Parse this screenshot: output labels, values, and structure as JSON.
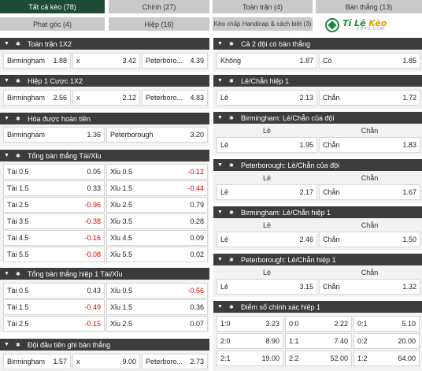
{
  "tabs": [
    {
      "label": "Tất cả kèo (78)",
      "active": true
    },
    {
      "label": "Chính (27)",
      "active": false
    },
    {
      "label": "Toàn trận (4)",
      "active": false
    },
    {
      "label": "Bàn thắng (13)",
      "active": false
    },
    {
      "label": "Phạt góc (4)",
      "active": false
    },
    {
      "label": "Hiệp (16)",
      "active": false
    },
    {
      "label": "Kèo chấp Handicap & cách biệt (3)",
      "active": false
    }
  ],
  "logo": {
    "main_a": "Tỉ Lệ ",
    "main_b": "Kèo",
    "sub": "EURO.COM"
  },
  "left": {
    "toan_tran_1x2": {
      "title": "Toàn trận 1X2",
      "home": "Birmingham",
      "home_odd": "1.88",
      "draw": "x",
      "draw_odd": "3.42",
      "away": "Peterboro...",
      "away_odd": "4.39"
    },
    "hiep1_1x2": {
      "title": "Hiệp 1 Cược 1X2",
      "home": "Birmingham",
      "home_odd": "2.56",
      "draw": "x",
      "draw_odd": "2.12",
      "away": "Peterboro...",
      "away_odd": "4.83"
    },
    "hoa_hoan_tien": {
      "title": "Hòa được hoàn tiền",
      "home": "Birmingham",
      "home_odd": "1.36",
      "away": "Peterborough",
      "away_odd": "3.20"
    },
    "tong_ban_thang": {
      "title": "Tổng bàn thắng Tài/Xỉu",
      "rows": [
        {
          "tai": "Tài 0.5",
          "tai_odd": "0.05",
          "xiu": "Xỉu 0.5",
          "xiu_odd": "-0.12"
        },
        {
          "tai": "Tài 1.5",
          "tai_odd": "0.33",
          "xiu": "Xỉu 1.5",
          "xiu_odd": "-0.44"
        },
        {
          "tai": "Tài 2.5",
          "tai_odd": "-0.96",
          "xiu": "Xỉu 2.5",
          "xiu_odd": "0.79"
        },
        {
          "tai": "Tài 3.5",
          "tai_odd": "-0.38",
          "xiu": "Xỉu 3.5",
          "xiu_odd": "0.28"
        },
        {
          "tai": "Tài 4.5",
          "tai_odd": "-0.16",
          "xiu": "Xỉu 4.5",
          "xiu_odd": "0.09"
        },
        {
          "tai": "Tài 5.5",
          "tai_odd": "-0.08",
          "xiu": "Xỉu 5.5",
          "xiu_odd": "0.02"
        }
      ]
    },
    "tong_ban_thang_h1": {
      "title": "Tổng bàn thắng hiệp 1 Tài/Xỉu",
      "rows": [
        {
          "tai": "Tài 0.5",
          "tai_odd": "0.43",
          "xiu": "Xỉu 0.5",
          "xiu_odd": "-0.56"
        },
        {
          "tai": "Tài 1.5",
          "tai_odd": "-0.49",
          "xiu": "Xỉu 1.5",
          "xiu_odd": "0.36"
        },
        {
          "tai": "Tài 2.5",
          "tai_odd": "-0.15",
          "xiu": "Xỉu 2.5",
          "xiu_odd": "0.07"
        }
      ]
    },
    "doi_dau_tien": {
      "title": "Đội đầu tiên ghi bàn thắng",
      "home": "Birmingham",
      "home_odd": "1.57",
      "draw": "x",
      "draw_odd": "9.00",
      "away": "Peterboro...",
      "away_odd": "2.73"
    }
  },
  "right": {
    "ca_hai_doi": {
      "title": "Cả 2 đội có bàn thắng",
      "no": "Không",
      "no_odd": "1.87",
      "yes": "Có",
      "yes_odd": "1.85"
    },
    "le_chan_h1": {
      "title": "Lẻ/Chẵn hiệp 1",
      "le": "Lẻ",
      "le_odd": "2.13",
      "chan": "Chẵn",
      "chan_odd": "1.72"
    },
    "birm_le_chan": {
      "title": "Birmingham: Lẻ/Chẵn của đội",
      "col_le": "Lẻ",
      "col_chan": "Chẵn",
      "le": "Lẻ",
      "le_odd": "1.95",
      "chan": "Chẵn",
      "chan_odd": "1.83"
    },
    "pet_le_chan": {
      "title": "Peterborough: Lẻ/Chẵn của đội",
      "col_le": "Lẻ",
      "col_chan": "Chẵn",
      "le": "Lẻ",
      "le_odd": "2.17",
      "chan": "Chẵn",
      "chan_odd": "1.67"
    },
    "birm_le_chan_h1": {
      "title": "Birmingham: Lẻ/Chẵn hiệp 1",
      "col_le": "Lẻ",
      "col_chan": "Chẵn",
      "le": "Lẻ",
      "le_odd": "2.46",
      "chan": "Chẵn",
      "chan_odd": "1.50"
    },
    "pet_le_chan_h1": {
      "title": "Peterborough: Lẻ/Chẵn hiệp 1",
      "col_le": "Lẻ",
      "col_chan": "Chẵn",
      "le": "Lẻ",
      "le_odd": "3.15",
      "chan": "Chẵn",
      "chan_odd": "1.32"
    },
    "diem_so": {
      "title": "Điểm số chính xác hiệp 1",
      "rows": [
        [
          {
            "s": "1:0",
            "o": "3.23"
          },
          {
            "s": "0:0",
            "o": "2.22"
          },
          {
            "s": "0:1",
            "o": "5.10"
          }
        ],
        [
          {
            "s": "2:0",
            "o": "8.90"
          },
          {
            "s": "1:1",
            "o": "7.40"
          },
          {
            "s": "0:2",
            "o": "20.00"
          }
        ],
        [
          {
            "s": "2:1",
            "o": "19.00"
          },
          {
            "s": "2:2",
            "o": "52.00"
          },
          {
            "s": "1:2",
            "o": "64.00"
          }
        ]
      ]
    }
  },
  "colors": {
    "header_bg": "#3c3c3c",
    "tab_active": "#1e4a36",
    "tab_inactive": "#c9c9c9",
    "negative": "#e00000"
  }
}
